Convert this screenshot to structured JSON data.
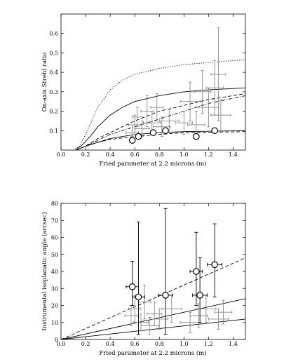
{
  "chart_data": [
    {
      "type": "scatter",
      "title": "",
      "xlabel": "Fried parameter at 2.2 microns (m)",
      "ylabel": "On-axis Strehl ratio",
      "xlim": [
        0,
        1.5
      ],
      "ylim": [
        0,
        0.7
      ],
      "x_ticks": [
        "0.0",
        "0.2",
        "0.4",
        "0.6",
        "0.8",
        "1.0",
        "1.2",
        "1.4"
      ],
      "y_ticks": [
        "0.1",
        "0.2",
        "0.3",
        "0.4",
        "0.5",
        "0.6"
      ],
      "grid": false,
      "legend": "none",
      "series": [
        {
          "style": "circles",
          "points": [
            {
              "x": 0.58,
              "y": 0.05
            },
            {
              "x": 0.63,
              "y": 0.07
            },
            {
              "x": 0.75,
              "y": 0.09
            },
            {
              "x": 0.85,
              "y": 0.1
            },
            {
              "x": 1.1,
              "y": 0.07
            },
            {
              "x": 1.25,
              "y": 0.1
            }
          ]
        },
        {
          "style": "gray-errorbars",
          "points": [
            {
              "x": 0.58,
              "y": 0.09,
              "xerr": 0.05,
              "yerr": 0.04
            },
            {
              "x": 0.6,
              "y": 0.13,
              "xerr": 0.05,
              "yerr": 0.05
            },
            {
              "x": 0.62,
              "y": 0.17,
              "xerr": 0.04,
              "yerr": 0.05
            },
            {
              "x": 0.66,
              "y": 0.11,
              "xerr": 0.06,
              "yerr": 0.04
            },
            {
              "x": 0.7,
              "y": 0.2,
              "xerr": 0.05,
              "yerr": 0.08
            },
            {
              "x": 0.74,
              "y": 0.14,
              "xerr": 0.07,
              "yerr": 0.06
            },
            {
              "x": 0.78,
              "y": 0.22,
              "xerr": 0.05,
              "yerr": 0.07
            },
            {
              "x": 0.82,
              "y": 0.12,
              "xerr": 0.07,
              "yerr": 0.05
            },
            {
              "x": 0.88,
              "y": 0.15,
              "xerr": 0.08,
              "yerr": 0.06
            },
            {
              "x": 1.0,
              "y": 0.14,
              "xerr": 0.07,
              "yerr": 0.06
            },
            {
              "x": 1.05,
              "y": 0.25,
              "xerr": 0.08,
              "yerr": 0.1
            },
            {
              "x": 1.1,
              "y": 0.13,
              "xerr": 0.07,
              "yerr": 0.07
            },
            {
              "x": 1.15,
              "y": 0.3,
              "xerr": 0.07,
              "yerr": 0.11
            },
            {
              "x": 1.2,
              "y": 0.22,
              "xerr": 0.08,
              "yerr": 0.1
            },
            {
              "x": 1.25,
              "y": 0.32,
              "xerr": 0.07,
              "yerr": 0.14
            },
            {
              "x": 1.28,
              "y": 0.39,
              "xerr": 0.06,
              "yerr": 0.24
            },
            {
              "x": 1.3,
              "y": 0.18,
              "xerr": 0.08,
              "yerr": 0.08
            }
          ]
        }
      ],
      "curves": [
        {
          "style": "dotted",
          "points": [
            [
              0.1,
              0.0
            ],
            [
              0.15,
              0.02
            ],
            [
              0.2,
              0.08
            ],
            [
              0.25,
              0.15
            ],
            [
              0.3,
              0.22
            ],
            [
              0.4,
              0.31
            ],
            [
              0.5,
              0.36
            ],
            [
              0.6,
              0.39
            ],
            [
              0.8,
              0.42
            ],
            [
              1.0,
              0.44
            ],
            [
              1.2,
              0.45
            ],
            [
              1.5,
              0.465
            ]
          ]
        },
        {
          "style": "solid",
          "points": [
            [
              0.12,
              0.0
            ],
            [
              0.18,
              0.03
            ],
            [
              0.25,
              0.08
            ],
            [
              0.3,
              0.12
            ],
            [
              0.4,
              0.18
            ],
            [
              0.5,
              0.22
            ],
            [
              0.6,
              0.25
            ],
            [
              0.8,
              0.28
            ],
            [
              1.0,
              0.3
            ],
            [
              1.2,
              0.31
            ],
            [
              1.5,
              0.32
            ]
          ]
        },
        {
          "style": "dashed",
          "points": [
            [
              0.12,
              0.0
            ],
            [
              0.2,
              0.02
            ],
            [
              0.3,
              0.06
            ],
            [
              0.4,
              0.09
            ],
            [
              0.5,
              0.12
            ],
            [
              0.6,
              0.15
            ],
            [
              0.8,
              0.2
            ],
            [
              1.0,
              0.23
            ],
            [
              1.2,
              0.26
            ],
            [
              1.5,
              0.29
            ]
          ]
        },
        {
          "style": "dash-dot",
          "points": [
            [
              0.12,
              0.0
            ],
            [
              0.2,
              0.02
            ],
            [
              0.3,
              0.05
            ],
            [
              0.4,
              0.08
            ],
            [
              0.6,
              0.12
            ],
            [
              0.8,
              0.16
            ],
            [
              1.0,
              0.2
            ],
            [
              1.2,
              0.24
            ],
            [
              1.5,
              0.28
            ]
          ]
        },
        {
          "style": "solid",
          "points": [
            [
              0.12,
              0.0
            ],
            [
              0.2,
              0.02
            ],
            [
              0.3,
              0.04
            ],
            [
              0.4,
              0.06
            ],
            [
              0.6,
              0.08
            ],
            [
              0.8,
              0.09
            ],
            [
              1.0,
              0.095
            ],
            [
              1.5,
              0.1
            ]
          ]
        },
        {
          "style": "dashed",
          "points": [
            [
              0.12,
              0.0
            ],
            [
              0.2,
              0.02
            ],
            [
              0.3,
              0.04
            ],
            [
              0.4,
              0.055
            ],
            [
              0.6,
              0.07
            ],
            [
              0.8,
              0.08
            ],
            [
              1.0,
              0.09
            ],
            [
              1.5,
              0.095
            ]
          ]
        }
      ]
    },
    {
      "type": "scatter",
      "title": "",
      "xlabel": "Fried parameter at 2.2 microns (m)",
      "ylabel": "Instrumental isoplanatic angle (arcsec)",
      "xlim": [
        0,
        1.5
      ],
      "ylim": [
        0,
        80
      ],
      "x_ticks": [
        "0.0",
        "0.2",
        "0.4",
        "0.6",
        "0.8",
        "1.0",
        "1.2",
        "1.4"
      ],
      "y_ticks": [
        "0",
        "10",
        "20",
        "30",
        "40",
        "50",
        "60",
        "70",
        "80"
      ],
      "grid": false,
      "legend": "none",
      "series": [
        {
          "style": "circles-with-errorbars",
          "points": [
            {
              "x": 0.58,
              "y": 31,
              "xerr": 0.05,
              "ylo": 20,
              "yhi": 46
            },
            {
              "x": 0.63,
              "y": 25,
              "xerr": 0.05,
              "ylo": 3,
              "yhi": 69
            },
            {
              "x": 0.85,
              "y": 26,
              "xerr": 0.06,
              "ylo": 3,
              "yhi": 77
            },
            {
              "x": 1.1,
              "y": 40,
              "xerr": 0.05,
              "ylo": 20,
              "yhi": 63
            },
            {
              "x": 1.13,
              "y": 26,
              "xerr": 0.06,
              "ylo": 10,
              "yhi": 48
            },
            {
              "x": 1.25,
              "y": 44,
              "xerr": 0.06,
              "ylo": 25,
              "yhi": 68
            }
          ]
        },
        {
          "style": "gray-errorbars",
          "points": [
            {
              "x": 0.57,
              "y": 14,
              "xerr": 0.05,
              "yerr": 6
            },
            {
              "x": 0.6,
              "y": 18,
              "xerr": 0.05,
              "yerr": 8
            },
            {
              "x": 0.65,
              "y": 10,
              "xerr": 0.06,
              "yerr": 5
            },
            {
              "x": 0.68,
              "y": 22,
              "xerr": 0.05,
              "yerr": 10
            },
            {
              "x": 0.72,
              "y": 8,
              "xerr": 0.07,
              "yerr": 5
            },
            {
              "x": 0.76,
              "y": 15,
              "xerr": 0.06,
              "yerr": 7
            },
            {
              "x": 0.8,
              "y": 12,
              "xerr": 0.07,
              "yerr": 6
            },
            {
              "x": 0.9,
              "y": 18,
              "xerr": 0.08,
              "yerr": 8
            },
            {
              "x": 1.05,
              "y": 10,
              "xerr": 0.08,
              "yerr": 6
            },
            {
              "x": 1.12,
              "y": 14,
              "xerr": 0.07,
              "yerr": 7
            },
            {
              "x": 1.18,
              "y": 18,
              "xerr": 0.08,
              "yerr": 8
            },
            {
              "x": 1.28,
              "y": 12,
              "xerr": 0.08,
              "yerr": 6
            },
            {
              "x": 1.32,
              "y": 16,
              "xerr": 0.07,
              "yerr": 7
            }
          ]
        }
      ],
      "curves": [
        {
          "style": "dashed",
          "points": [
            [
              0.0,
              0.0
            ],
            [
              1.5,
              48
            ]
          ]
        },
        {
          "style": "solid",
          "points": [
            [
              0.0,
              0.0
            ],
            [
              1.5,
              24
            ]
          ]
        },
        {
          "style": "solid",
          "points": [
            [
              0.0,
              0.0
            ],
            [
              1.5,
              12
            ]
          ]
        }
      ]
    }
  ]
}
